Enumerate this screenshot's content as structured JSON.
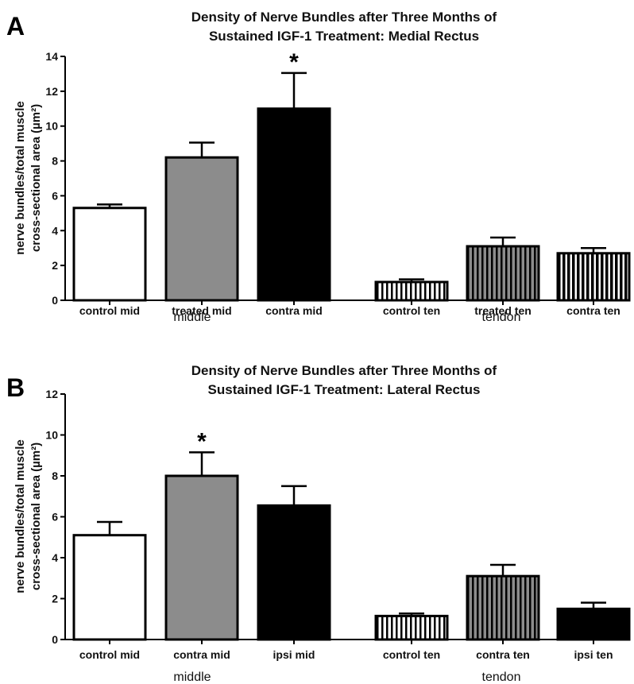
{
  "chart_data": [
    {
      "type": "bar",
      "panel_label": "A",
      "title_lines": [
        "Density of Nerve Bundles after Three Months of",
        "Sustained  IGF-1 Treatment: Medial Rectus"
      ],
      "ylabel_lines": [
        "nerve bundles/total muscle",
        "cross-sectional area  (µm²)"
      ],
      "ylim": [
        0,
        14
      ],
      "yticks": [
        "0",
        "2",
        "4",
        "6",
        "8",
        "10",
        "12",
        "14"
      ],
      "categories": [
        "control mid",
        "treated mid",
        "contra mid",
        "control ten",
        "treated ten",
        "contra ten"
      ],
      "values": [
        5.3,
        8.2,
        11.0,
        1.05,
        3.1,
        2.7
      ],
      "errors": [
        0.2,
        0.85,
        2.05,
        0.15,
        0.5,
        0.3
      ],
      "fills": [
        "white",
        "gray",
        "black",
        "white-stripes",
        "gray-stripes",
        "black-stripes"
      ],
      "significance": [
        "",
        "",
        "*",
        "",
        "",
        ""
      ],
      "groups": [
        "middle",
        "tendon"
      ]
    },
    {
      "type": "bar",
      "panel_label": "B",
      "title_lines": [
        "Density of Nerve Bundles after Three Months of",
        "Sustained  IGF-1 Treatment: Lateral Rectus"
      ],
      "ylabel_lines": [
        "nerve bundles/total muscle",
        "cross-sectional area  (µm²)"
      ],
      "ylim": [
        0,
        12
      ],
      "yticks": [
        "0",
        "2",
        "4",
        "6",
        "8",
        "10",
        "12"
      ],
      "categories": [
        "control mid",
        "contra mid",
        "ipsi mid",
        "control ten",
        "contra ten",
        "ipsi ten"
      ],
      "values": [
        5.1,
        8.0,
        6.55,
        1.15,
        3.1,
        1.5
      ],
      "errors": [
        0.65,
        1.15,
        0.95,
        0.12,
        0.55,
        0.3
      ],
      "fills": [
        "white",
        "gray",
        "black",
        "white-stripes",
        "gray-stripes",
        "black"
      ],
      "significance": [
        "",
        "*",
        "",
        "",
        "",
        ""
      ],
      "groups": [
        "middle",
        "tendon"
      ]
    }
  ]
}
